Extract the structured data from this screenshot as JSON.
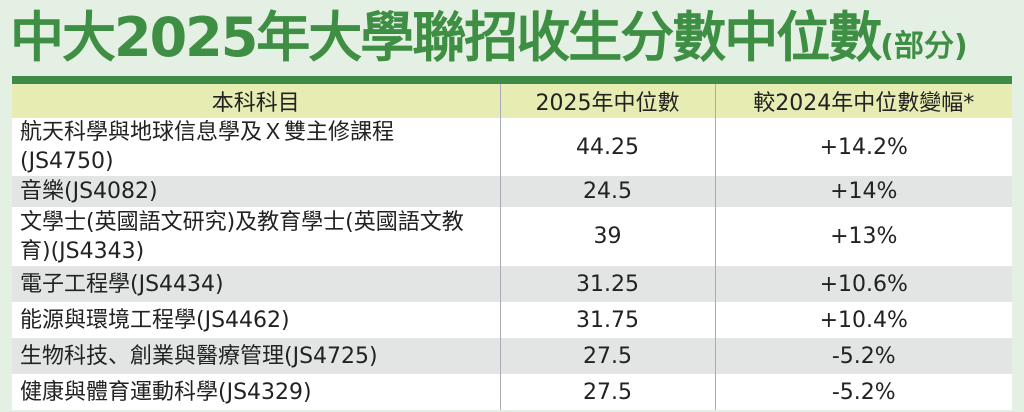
{
  "title": {
    "main": "中大2025年大學聯招收生分數中位數",
    "suffix": "(部分)"
  },
  "table": {
    "headers": [
      "本科科目",
      "2025年中位數",
      "較2024年中位數變幅*"
    ],
    "rows": [
      {
        "subject": "航天科學與地球信息學及Ｘ雙主修課程(JS4750)",
        "median": "44.25",
        "change": "+14.2%"
      },
      {
        "subject": "音樂(JS4082)",
        "median": "24.5",
        "change": "+14%"
      },
      {
        "subject": "文學士(英國語文研究)及教育學士(英國語文教育)(JS4343)",
        "median": "39",
        "change": "+13%"
      },
      {
        "subject": "電子工程學(JS4434)",
        "median": "31.25",
        "change": "+10.6%"
      },
      {
        "subject": "能源與環境工程學(JS4462)",
        "median": "31.75",
        "change": "+10.4%"
      },
      {
        "subject": "生物科技、創業與醫療管理(JS4725)",
        "median": "27.5",
        "change": "-5.2%"
      },
      {
        "subject": "健康與體育運動科學(JS4329)",
        "median": "27.5",
        "change": "-5.2%"
      }
    ]
  },
  "colors": {
    "title": "#3e8e44",
    "header_bg": "#e7ecb3",
    "band": "#e3e5e4",
    "background": "#e4f0e3"
  }
}
